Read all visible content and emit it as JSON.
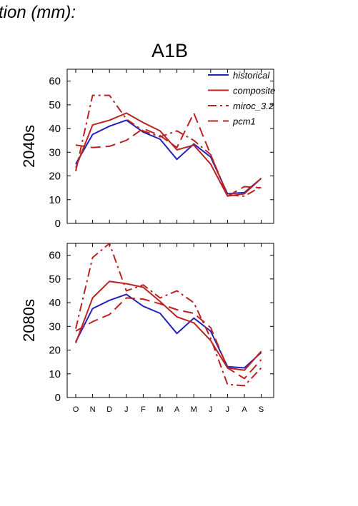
{
  "header": {
    "title_fragment": "tion (mm):",
    "scenario": "A1B"
  },
  "colors": {
    "historical": "#2222bb",
    "composite": "#bb2222",
    "miroc_3.2": "#bb2222",
    "pcm1": "#bb2222"
  },
  "chart_data": [
    {
      "type": "line",
      "ylabel": "2040s",
      "ylim": [
        0,
        65
      ],
      "yticks": [
        0,
        10,
        20,
        30,
        40,
        50,
        60
      ],
      "x": [
        "O",
        "N",
        "D",
        "J",
        "F",
        "M",
        "A",
        "M",
        "J",
        "J",
        "A",
        "S"
      ],
      "show_xtick_labels": false,
      "grid": false,
      "legend_position": "top-right",
      "series": [
        {
          "name": "historical",
          "dash": "solid",
          "values": [
            25,
            37.5,
            41,
            43.5,
            38.5,
            35.5,
            27,
            33.5,
            28,
            12.5,
            13,
            19
          ]
        },
        {
          "name": "composite",
          "dash": "solid",
          "values": [
            23.5,
            41.5,
            43.5,
            46.5,
            42.5,
            39,
            31,
            33,
            25,
            11.5,
            12.5,
            19
          ]
        },
        {
          "name": "miroc_3.2",
          "dash": "dashdot",
          "values": [
            22,
            54,
            54,
            44,
            39,
            36.5,
            39,
            35,
            29,
            12,
            11.5,
            15.5
          ]
        },
        {
          "name": "pcm1",
          "dash": "dash",
          "values": [
            33,
            32,
            32.5,
            35,
            40,
            37,
            32,
            46.5,
            29,
            11.5,
            15.5,
            15
          ]
        }
      ]
    },
    {
      "type": "line",
      "ylabel": "2080s",
      "ylim": [
        0,
        65
      ],
      "yticks": [
        0,
        10,
        20,
        30,
        40,
        50,
        60
      ],
      "x": [
        "O",
        "N",
        "D",
        "J",
        "F",
        "M",
        "A",
        "M",
        "J",
        "J",
        "A",
        "S"
      ],
      "show_xtick_labels": true,
      "grid": false,
      "series": [
        {
          "name": "historical",
          "dash": "solid",
          "values": [
            23.5,
            37.5,
            41,
            43.5,
            38.5,
            35.5,
            27,
            33.5,
            28,
            13,
            12.5,
            19
          ]
        },
        {
          "name": "composite",
          "dash": "solid",
          "values": [
            23,
            42,
            49,
            48,
            46.5,
            40.5,
            34,
            31.5,
            24,
            12.5,
            11.5,
            19.5
          ]
        },
        {
          "name": "miroc_3.2",
          "dash": "dashdot",
          "values": [
            29,
            59,
            65,
            45,
            47.5,
            42,
            45,
            40,
            25,
            5.5,
            5,
            12.5
          ]
        },
        {
          "name": "pcm1",
          "dash": "dash",
          "values": [
            28,
            32,
            35,
            42,
            41.5,
            39.5,
            37,
            35.5,
            29.5,
            12.5,
            8,
            16
          ]
        }
      ]
    }
  ]
}
